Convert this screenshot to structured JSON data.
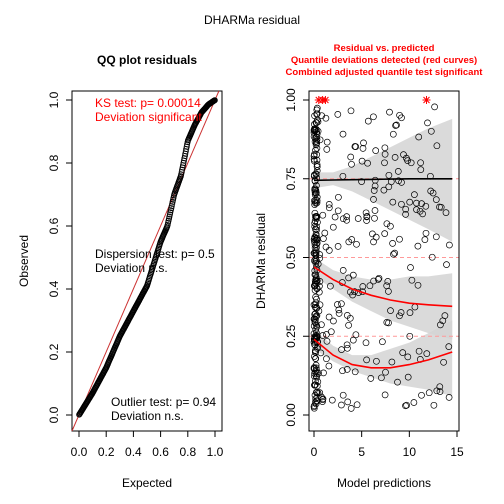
{
  "figure_title": "DHARMa residual",
  "chart_data": [
    {
      "type": "scatter",
      "title": "QQ plot residuals",
      "xlabel": "Expected",
      "ylabel": "Observed",
      "xlim": [
        0,
        1
      ],
      "ylim": [
        0,
        1
      ],
      "x_ticks": [
        "0.0",
        "0.2",
        "0.4",
        "0.6",
        "0.8",
        "1.0"
      ],
      "y_ticks": [
        "0.0",
        "0.2",
        "0.4",
        "0.6",
        "0.8",
        "1.0"
      ],
      "reference_line": {
        "from": [
          0,
          0
        ],
        "to": [
          1,
          1
        ]
      },
      "qq_curve": {
        "x": [
          0.0,
          0.05,
          0.1,
          0.15,
          0.2,
          0.25,
          0.3,
          0.35,
          0.4,
          0.45,
          0.5,
          0.55,
          0.6,
          0.65,
          0.7,
          0.75,
          0.8,
          0.85,
          0.9,
          0.95,
          1.0
        ],
        "y": [
          0.0,
          0.035,
          0.07,
          0.11,
          0.15,
          0.2,
          0.25,
          0.29,
          0.33,
          0.37,
          0.41,
          0.48,
          0.55,
          0.6,
          0.7,
          0.76,
          0.87,
          0.92,
          0.96,
          0.985,
          1.0
        ]
      },
      "annotations": {
        "ks_test": "KS test: p= 0.00014",
        "ks_deviation": "Deviation  significant",
        "dispersion_test": "Dispersion test: p= 0.5",
        "dispersion_deviation": "Deviation  n.s.",
        "outlier_test": "Outlier test: p= 0.94",
        "outlier_deviation": "Deviation  n.s."
      },
      "colors": {
        "points": "#000000",
        "reference_line": "#cc3333",
        "significant": "#ff0000"
      }
    },
    {
      "type": "scatter",
      "title_lines": [
        "Residual vs. predicted",
        "Quantile deviations detected (red curves)",
        "Combined adjusted quantile test significant"
      ],
      "xlabel": "Model predictions",
      "ylabel": "DHARMa residual",
      "xlim": [
        0,
        15
      ],
      "ylim": [
        0,
        1
      ],
      "x_ticks": [
        "0",
        "5",
        "10",
        "15"
      ],
      "y_ticks": [
        "0.00",
        "0.25",
        "0.50",
        "0.75",
        "1.00"
      ],
      "dashed_quantiles": [
        0.25,
        0.5,
        0.75
      ],
      "quantile_fits": [
        {
          "quantile": 0.25,
          "x": [
            0,
            2,
            4,
            6,
            8,
            10,
            12,
            14.5
          ],
          "y": [
            0.24,
            0.19,
            0.16,
            0.15,
            0.15,
            0.16,
            0.175,
            0.2
          ],
          "band_lo": [
            0.21,
            0.17,
            0.14,
            0.12,
            0.1,
            0.09,
            0.08,
            0.06
          ],
          "band_hi": [
            0.27,
            0.22,
            0.19,
            0.19,
            0.21,
            0.23,
            0.26,
            0.3
          ],
          "color": "#ff0000"
        },
        {
          "quantile": 0.5,
          "x": [
            0,
            2,
            4,
            6,
            8,
            10,
            12,
            14.5
          ],
          "y": [
            0.47,
            0.43,
            0.4,
            0.38,
            0.365,
            0.355,
            0.35,
            0.345
          ],
          "band_lo": [
            0.44,
            0.4,
            0.36,
            0.33,
            0.3,
            0.28,
            0.26,
            0.24
          ],
          "band_hi": [
            0.5,
            0.46,
            0.44,
            0.43,
            0.43,
            0.44,
            0.44,
            0.45
          ],
          "color": "#ff0000"
        },
        {
          "quantile": 0.75,
          "x": [
            0,
            2,
            4,
            6,
            8,
            10,
            12,
            14.5
          ],
          "y": [
            0.745,
            0.746,
            0.747,
            0.748,
            0.749,
            0.75,
            0.75,
            0.75
          ],
          "band_lo": [
            0.72,
            0.73,
            0.71,
            0.68,
            0.65,
            0.62,
            0.59,
            0.55
          ],
          "band_hi": [
            0.77,
            0.77,
            0.79,
            0.82,
            0.85,
            0.88,
            0.91,
            0.94
          ],
          "color": "#000000"
        }
      ],
      "outliers": {
        "x": [
          0.5,
          0.9,
          1.2,
          11.8
        ],
        "y": [
          1.0,
          1.0,
          1.0,
          1.0
        ],
        "color": "#ff0000"
      }
    }
  ]
}
